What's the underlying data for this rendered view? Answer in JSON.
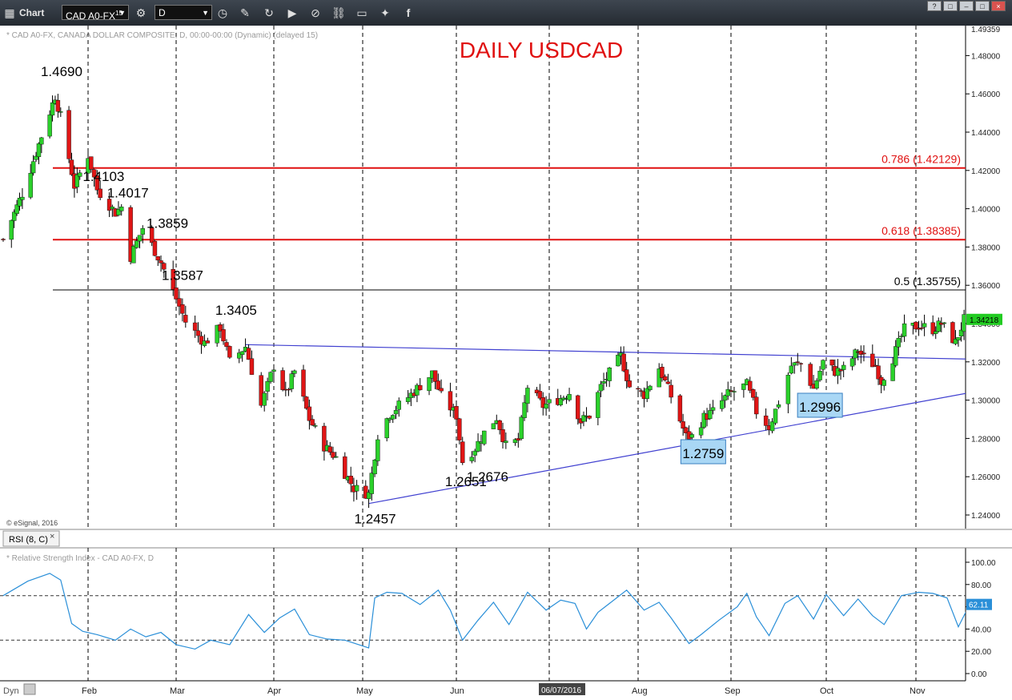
{
  "toolbar": {
    "chart_label": "Chart",
    "symbol_value": "CAD A0-FX",
    "symbol_badge": "15",
    "interval_value": "D",
    "window_help": "?",
    "window_restore": "□",
    "window_min": "–",
    "window_close": "×"
  },
  "chart_info": "* CAD A0-FX, CANADA DOLLAR COMPOSITE, D, 00:00-00:00 (Dynamic) (delayed 15)",
  "copyright": "© eSignal, 2016",
  "rsi_tab": {
    "label": "RSI (8, C)",
    "close": "×"
  },
  "rsi_info": "* Relative Strength Index - CAD A0-FX, D",
  "footer": {
    "dyn": "Dyn"
  },
  "colors": {
    "up": "#2bd12b",
    "down": "#e01515",
    "fib": "#e01010",
    "trend": "#4040d0",
    "rsi": "#2a8fd8",
    "title": "#e01010",
    "price_tag": "#22cc22",
    "rsi_tag": "#2a8fd8"
  },
  "chart_data": {
    "type": "candlestick",
    "title": "DAILY USDCAD",
    "price_axis": {
      "range": [
        1.234,
        1.4935
      ],
      "ticks": [
        "1.24000",
        "1.26000",
        "1.28000",
        "1.30000",
        "1.32000",
        "1.34000",
        "1.36000",
        "1.38000",
        "1.40000",
        "1.42000",
        "1.44000",
        "1.46000",
        "1.48000"
      ],
      "top_value": "1.49359",
      "last_price": "1.34218"
    },
    "months": [
      "Feb",
      "Mar",
      "Apr",
      "May",
      "Jun",
      "06/07/2016",
      "Aug",
      "Sep",
      "Oct",
      "Nov"
    ],
    "annotations": [
      {
        "text": "1.4690",
        "date": "2016-01-20",
        "price": 1.469
      },
      {
        "text": "1.4103",
        "date": "2016-02-04",
        "price": 1.4103
      },
      {
        "text": "1.4017",
        "date": "2016-02-12",
        "price": 1.4017
      },
      {
        "text": "1.3859",
        "date": "2016-02-25",
        "price": 1.3859
      },
      {
        "text": "1.3587",
        "date": "2016-03-01",
        "price": 1.3587
      },
      {
        "text": "1.3405",
        "date": "2016-03-18",
        "price": 1.3405
      },
      {
        "text": "1.2457",
        "date": "2016-05-03",
        "price": 1.2457
      },
      {
        "text": "1.2651",
        "date": "2016-06-02",
        "price": 1.2651
      },
      {
        "text": "1.2676",
        "date": "2016-06-09",
        "price": 1.2676
      },
      {
        "text": "1.2759",
        "date": "2016-08-19",
        "price": 1.2759,
        "boxed": true
      },
      {
        "text": "1.2996",
        "date": "2016-09-27",
        "price": 1.2996,
        "boxed": true
      }
    ],
    "fib_levels": [
      {
        "label": "0.786 (1.42129)",
        "value": 1.42129,
        "color": "red"
      },
      {
        "label": "0.618 (1.38385)",
        "value": 1.38385,
        "color": "red"
      },
      {
        "label": "0.5 (1.35755)",
        "value": 1.35755,
        "color": "black"
      }
    ],
    "trendlines": [
      {
        "name": "upper",
        "from": {
          "date": "2016-03-23",
          "price": 1.329
        },
        "to": {
          "date": "2016-11-21",
          "price": 1.3215
        }
      },
      {
        "name": "lower",
        "from": {
          "date": "2016-05-03",
          "price": 1.246
        },
        "to": {
          "date": "2016-11-21",
          "price": 1.3035
        }
      }
    ],
    "price_path": [
      [
        "2016-01-01",
        1.384
      ],
      [
        "2016-01-08",
        1.408
      ],
      [
        "2016-01-15",
        1.438
      ],
      [
        "2016-01-20",
        1.459
      ],
      [
        "2016-01-22",
        1.448
      ],
      [
        "2016-01-27",
        1.412
      ],
      [
        "2016-02-01",
        1.428
      ],
      [
        "2016-02-04",
        1.41
      ],
      [
        "2016-02-10",
        1.398
      ],
      [
        "2016-02-12",
        1.401
      ],
      [
        "2016-02-15",
        1.375
      ],
      [
        "2016-02-19",
        1.39
      ],
      [
        "2016-02-25",
        1.372
      ],
      [
        "2016-03-01",
        1.353
      ],
      [
        "2016-03-04",
        1.341
      ],
      [
        "2016-03-10",
        1.33
      ],
      [
        "2016-03-15",
        1.338
      ],
      [
        "2016-03-18",
        1.32
      ],
      [
        "2016-03-23",
        1.328
      ],
      [
        "2016-03-28",
        1.297
      ],
      [
        "2016-04-01",
        1.318
      ],
      [
        "2016-04-05",
        1.303
      ],
      [
        "2016-04-08",
        1.315
      ],
      [
        "2016-04-13",
        1.29
      ],
      [
        "2016-04-18",
        1.276
      ],
      [
        "2016-04-22",
        1.27
      ],
      [
        "2016-04-28",
        1.254
      ],
      [
        "2016-05-03",
        1.251
      ],
      [
        "2016-05-06",
        1.282
      ],
      [
        "2016-05-10",
        1.293
      ],
      [
        "2016-05-17",
        1.303
      ],
      [
        "2016-05-24",
        1.314
      ],
      [
        "2016-05-27",
        1.302
      ],
      [
        "2016-06-01",
        1.292
      ],
      [
        "2016-06-03",
        1.268
      ],
      [
        "2016-06-07",
        1.275
      ],
      [
        "2016-06-10",
        1.283
      ],
      [
        "2016-06-14",
        1.291
      ],
      [
        "2016-06-17",
        1.276
      ],
      [
        "2016-06-21",
        1.279
      ],
      [
        "2016-06-24",
        1.307
      ],
      [
        "2016-06-29",
        1.297
      ],
      [
        "2016-07-05",
        1.301
      ],
      [
        "2016-07-08",
        1.304
      ],
      [
        "2016-07-12",
        1.289
      ],
      [
        "2016-07-15",
        1.292
      ],
      [
        "2016-07-19",
        1.307
      ],
      [
        "2016-07-22",
        1.314
      ],
      [
        "2016-07-26",
        1.323
      ],
      [
        "2016-07-29",
        1.307
      ],
      [
        "2016-08-03",
        1.303
      ],
      [
        "2016-08-08",
        1.317
      ],
      [
        "2016-08-12",
        1.302
      ],
      [
        "2016-08-17",
        1.281
      ],
      [
        "2016-08-19",
        1.281
      ],
      [
        "2016-08-23",
        1.291
      ],
      [
        "2016-08-26",
        1.294
      ],
      [
        "2016-08-31",
        1.303
      ],
      [
        "2016-09-06",
        1.308
      ],
      [
        "2016-09-09",
        1.294
      ],
      [
        "2016-09-13",
        1.286
      ],
      [
        "2016-09-16",
        1.299
      ],
      [
        "2016-09-20",
        1.318
      ],
      [
        "2016-09-23",
        1.319
      ],
      [
        "2016-09-27",
        1.306
      ],
      [
        "2016-09-30",
        1.32
      ],
      [
        "2016-10-04",
        1.315
      ],
      [
        "2016-10-07",
        1.316
      ],
      [
        "2016-10-12",
        1.326
      ],
      [
        "2016-10-14",
        1.322
      ],
      [
        "2016-10-18",
        1.318
      ],
      [
        "2016-10-20",
        1.31
      ],
      [
        "2016-10-24",
        1.322
      ],
      [
        "2016-10-28",
        1.337
      ],
      [
        "2016-11-02",
        1.339
      ],
      [
        "2016-11-07",
        1.337
      ],
      [
        "2016-11-10",
        1.34
      ],
      [
        "2016-11-15",
        1.33
      ],
      [
        "2016-11-18",
        1.342
      ]
    ],
    "rsi": {
      "ticks": [
        "0.00",
        "20.00",
        "40.00",
        "60.00",
        "80.00",
        "100.00"
      ],
      "levels": [
        30,
        70
      ],
      "last": "62.11",
      "points": [
        [
          "2016-01-01",
          70
        ],
        [
          "2016-01-10",
          83
        ],
        [
          "2016-01-18",
          90
        ],
        [
          "2016-01-22",
          84
        ],
        [
          "2016-01-26",
          45
        ],
        [
          "2016-01-30",
          38
        ],
        [
          "2016-02-04",
          35
        ],
        [
          "2016-02-10",
          30
        ],
        [
          "2016-02-15",
          40
        ],
        [
          "2016-02-20",
          33
        ],
        [
          "2016-02-25",
          37
        ],
        [
          "2016-03-01",
          26
        ],
        [
          "2016-03-07",
          22
        ],
        [
          "2016-03-12",
          30
        ],
        [
          "2016-03-18",
          26
        ],
        [
          "2016-03-24",
          53
        ],
        [
          "2016-03-29",
          37
        ],
        [
          "2016-04-03",
          50
        ],
        [
          "2016-04-08",
          58
        ],
        [
          "2016-04-13",
          35
        ],
        [
          "2016-04-19",
          31
        ],
        [
          "2016-04-25",
          30
        ],
        [
          "2016-05-03",
          23
        ],
        [
          "2016-05-05",
          68
        ],
        [
          "2016-05-09",
          73
        ],
        [
          "2016-05-14",
          72
        ],
        [
          "2016-05-20",
          62
        ],
        [
          "2016-05-26",
          75
        ],
        [
          "2016-05-30",
          57
        ],
        [
          "2016-06-03",
          30
        ],
        [
          "2016-06-08",
          48
        ],
        [
          "2016-06-13",
          64
        ],
        [
          "2016-06-18",
          44
        ],
        [
          "2016-06-24",
          73
        ],
        [
          "2016-06-30",
          57
        ],
        [
          "2016-07-05",
          66
        ],
        [
          "2016-07-10",
          63
        ],
        [
          "2016-07-14",
          40
        ],
        [
          "2016-07-18",
          55
        ],
        [
          "2016-07-24",
          67
        ],
        [
          "2016-07-28",
          75
        ],
        [
          "2016-08-03",
          57
        ],
        [
          "2016-08-08",
          64
        ],
        [
          "2016-08-12",
          50
        ],
        [
          "2016-08-18",
          27
        ],
        [
          "2016-08-22",
          35
        ],
        [
          "2016-08-28",
          48
        ],
        [
          "2016-09-03",
          60
        ],
        [
          "2016-09-06",
          72
        ],
        [
          "2016-09-09",
          51
        ],
        [
          "2016-09-13",
          34
        ],
        [
          "2016-09-18",
          63
        ],
        [
          "2016-09-22",
          70
        ],
        [
          "2016-09-27",
          49
        ],
        [
          "2016-10-01",
          71
        ],
        [
          "2016-10-07",
          52
        ],
        [
          "2016-10-12",
          67
        ],
        [
          "2016-10-17",
          52
        ],
        [
          "2016-10-21",
          44
        ],
        [
          "2016-10-27",
          70
        ],
        [
          "2016-11-02",
          73
        ],
        [
          "2016-11-07",
          72
        ],
        [
          "2016-11-12",
          68
        ],
        [
          "2016-11-16",
          42
        ],
        [
          "2016-11-20",
          62
        ]
      ]
    }
  }
}
